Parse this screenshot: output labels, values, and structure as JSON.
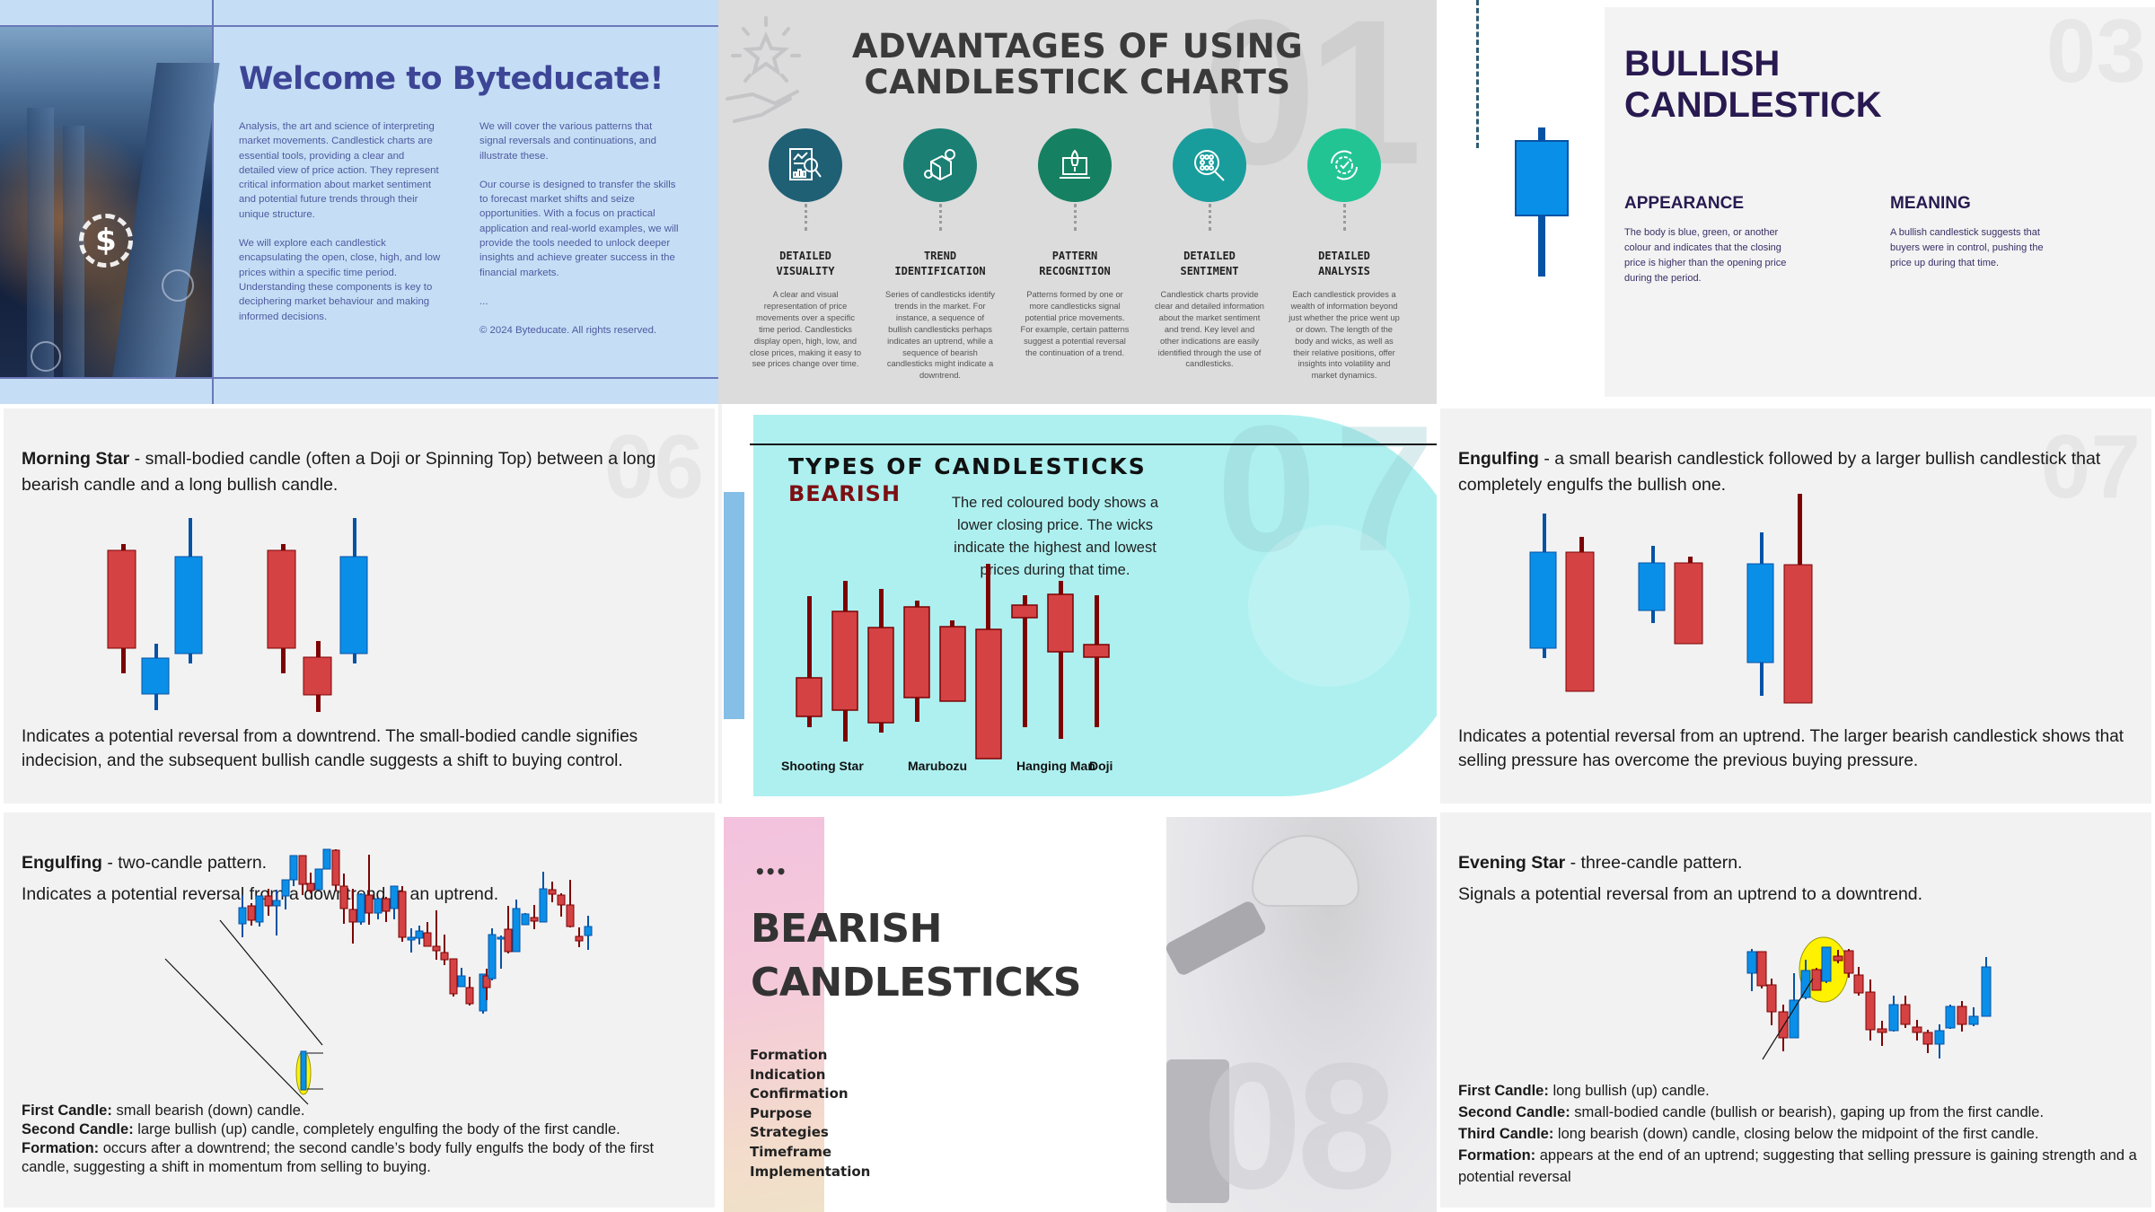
{
  "welcome": {
    "title": "Welcome to Byteducate!",
    "col1": [
      "Analysis, the art and science of interpreting market movements. Candlestick charts are essential tools, providing a clear and detailed view of price action. They represent critical information about market sentiment and potential future trends through their unique structure.",
      "We will explore each candlestick encapsulating the open, close, high, and low prices within a specific time period. Understanding these components is key to deciphering market behaviour and making informed decisions."
    ],
    "col2": [
      "We will cover the various patterns that signal reversals and continuations, and illustrate these.",
      "Our course is designed to transfer the skills to forecast market shifts and seize opportunities. With a focus on practical application and real-world examples, we will provide the tools needed to unlock deeper insights and achieve greater success in the financial markets.",
      "...",
      "© 2024 Byteducate. All rights reserved."
    ],
    "image_icons": [
      "dollar-icon",
      "user-icon",
      "cart-icon"
    ]
  },
  "advantages": {
    "slide_number": "01",
    "title_line1": "ADVANTAGES OF USING",
    "title_line2": "CANDLESTICK CHARTS",
    "items": [
      {
        "label1": "DETAILED",
        "label2": "VISUALITY",
        "icon": "report-magnifier-icon",
        "color": "#1f6075",
        "desc": "A clear and visual representation of price movements over a specific time period. Candlesticks display open, high, low, and close prices, making it easy to see prices change over time."
      },
      {
        "label1": "TREND",
        "label2": "IDENTIFICATION",
        "icon": "box-gear-bulb-icon",
        "color": "#1b7f74",
        "desc": "Series of candlesticks identify trends in the market. For instance, a sequence of bullish candlesticks perhaps indicates an uptrend, while a sequence of bearish candlesticks might indicate a downtrend."
      },
      {
        "label1": "PATTERN",
        "label2": "RECOGNITION",
        "icon": "rocket-laptop-icon",
        "color": "#168062",
        "desc": "Patterns formed by one or more candlesticks signal potential price movements. For example, certain patterns suggest a potential reversal the continuation of a trend."
      },
      {
        "label1": "DETAILED",
        "label2": "SENTIMENT",
        "icon": "network-magnifier-icon",
        "color": "#199c9c",
        "desc": "Candlestick charts provide clear and detailed information about the market sentiment and trend. Key level and other indications are easily identified through the use of candlesticks."
      },
      {
        "label1": "DETAILED",
        "label2": "ANALYSIS",
        "icon": "gear-cycle-check-icon",
        "color": "#22c494",
        "desc": "Each candlestick provides a wealth of information beyond just whether the price went up or down. The length of the body and wicks, as well as their relative positions, offer insights into volatility and market dynamics."
      }
    ]
  },
  "bullish": {
    "slide_number": "03",
    "title_line1": "BULLISH",
    "title_line2": "CANDLESTICK",
    "appearance_heading": "APPEARANCE",
    "appearance_text": "The body is blue, green, or another colour and indicates that the closing price is higher than the opening price during the period.",
    "meaning_heading": "MEANING",
    "meaning_text": "A bullish candlestick suggests that buyers were in control, pushing the price up during that time."
  },
  "morning_star": {
    "slide_number": "06",
    "name": "Morning Star",
    "intro": " - small-bodied candle (often a Doji or Spinning Top) between a long bearish candle and a long bullish candle.",
    "footer": "Indicates a potential reversal from a downtrend. The small-bodied candle signifies indecision, and the subsequent bullish candle suggests a shift to buying control."
  },
  "types": {
    "slide_number": "07",
    "title": "TYPES OF CANDLESTICKS",
    "subtitle": "BEARISH",
    "description": "The red coloured body shows a lower closing price. The wicks indicate the highest and lowest prices during that time.",
    "labels": [
      "Shooting Star",
      "Marubozu",
      "Hanging Man",
      "Doji"
    ]
  },
  "engulfing_bearish": {
    "slide_number": "07",
    "name": "Engulfing",
    "intro": " - a small bearish candlestick followed by a larger bullish candlestick that completely engulfs the bullish one.",
    "footer": "Indicates a potential reversal from an uptrend. The larger bearish candlestick shows that selling pressure has overcome the previous buying pressure."
  },
  "engulfing_bullish": {
    "name": "Engulfing",
    "intro": " - two-candle pattern.",
    "line2": "Indicates a potential reversal from a downtrend to an uptrend.",
    "first_label": "First Candle:",
    "first_text": " small bearish (down) candle.",
    "second_label": "Second Candle:",
    "second_text": " large bullish (up) candle, completely engulfing the body of the first candle.",
    "formation_label": "Formation:",
    "formation_text": " occurs after a downtrend; the second candle’s body fully engulfs the body of the first candle, suggesting a shift in momentum from selling to buying."
  },
  "bearish_candlesticks": {
    "slide_number": "08",
    "ellipsis": "•••",
    "title_line1": "BEARISH",
    "title_line2": "CANDLESTICKS",
    "topics": [
      "Formation",
      "Indication",
      "Confirmation",
      "Purpose",
      "Strategies",
      "Timeframe",
      "Implementation"
    ]
  },
  "evening_star": {
    "name": "Evening Star",
    "intro": " - three-candle pattern.",
    "line2": "Signals a potential reversal from an uptrend to a downtrend.",
    "first_label": "First Candle:",
    "first_text": " long bullish (up) candle.",
    "second_label": "Second Candle:",
    "second_text": " small-bodied candle (bullish or bearish), gaping up from the first candle.",
    "third_label": "Third Candle:",
    "third_text": " long bearish (down) candle, closing below the midpoint of the first candle.",
    "formation_label": "Formation:",
    "formation_text": " appears at the end of an uptrend; suggesting that selling pressure is gaining strength and a potential reversal"
  },
  "colors": {
    "bullish_body": "#0a8fe8",
    "bullish_wick": "#0652a5",
    "bearish_body": "#d44244",
    "bearish_wick": "#7d0303",
    "highlight": "#fff200"
  }
}
